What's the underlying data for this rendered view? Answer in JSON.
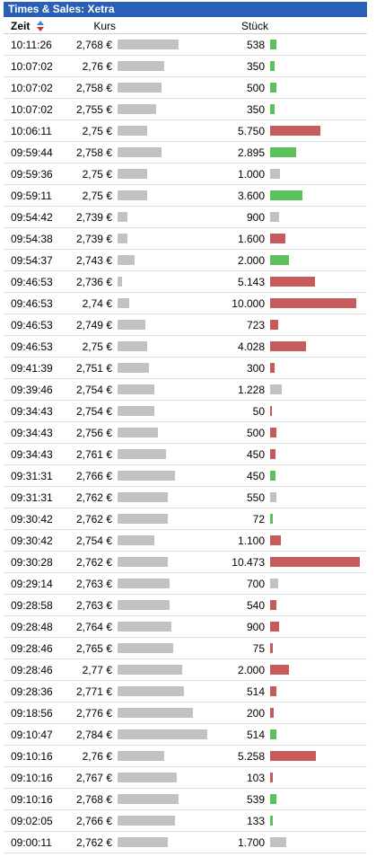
{
  "widget": {
    "title": "Times & Sales: Xetra",
    "columns": {
      "zeit": "Zeit",
      "kurs": "Kurs",
      "stueck": "Stück"
    }
  },
  "colors": {
    "title_bg": "#2a5fb8",
    "kurs_bar": "#c2c2c2",
    "neutral": "#c2c2c2",
    "up": "#5cc05c",
    "down": "#c75a5a"
  },
  "scale": {
    "kurs_min": 2.736,
    "kurs_max": 2.784,
    "stueck_max": 10473
  },
  "trades": [
    {
      "time": "10:11:26",
      "price": "2,768 €",
      "price_value": 2.768,
      "qty": "538",
      "qty_value": 538,
      "dir": "up"
    },
    {
      "time": "10:07:02",
      "price": "2,76 €",
      "price_value": 2.76,
      "qty": "350",
      "qty_value": 350,
      "dir": "up"
    },
    {
      "time": "10:07:02",
      "price": "2,758 €",
      "price_value": 2.758,
      "qty": "500",
      "qty_value": 500,
      "dir": "up"
    },
    {
      "time": "10:07:02",
      "price": "2,755 €",
      "price_value": 2.755,
      "qty": "350",
      "qty_value": 350,
      "dir": "up"
    },
    {
      "time": "10:06:11",
      "price": "2,75 €",
      "price_value": 2.75,
      "qty": "5.750",
      "qty_value": 5750,
      "dir": "down"
    },
    {
      "time": "09:59:44",
      "price": "2,758 €",
      "price_value": 2.758,
      "qty": "2.895",
      "qty_value": 2895,
      "dir": "up"
    },
    {
      "time": "09:59:36",
      "price": "2,75 €",
      "price_value": 2.75,
      "qty": "1.000",
      "qty_value": 1000,
      "dir": "neutral"
    },
    {
      "time": "09:59:11",
      "price": "2,75 €",
      "price_value": 2.75,
      "qty": "3.600",
      "qty_value": 3600,
      "dir": "up"
    },
    {
      "time": "09:54:42",
      "price": "2,739 €",
      "price_value": 2.739,
      "qty": "900",
      "qty_value": 900,
      "dir": "neutral"
    },
    {
      "time": "09:54:38",
      "price": "2,739 €",
      "price_value": 2.739,
      "qty": "1.600",
      "qty_value": 1600,
      "dir": "down"
    },
    {
      "time": "09:54:37",
      "price": "2,743 €",
      "price_value": 2.743,
      "qty": "2.000",
      "qty_value": 2000,
      "dir": "up"
    },
    {
      "time": "09:46:53",
      "price": "2,736 €",
      "price_value": 2.736,
      "qty": "5.143",
      "qty_value": 5143,
      "dir": "down"
    },
    {
      "time": "09:46:53",
      "price": "2,74 €",
      "price_value": 2.74,
      "qty": "10.000",
      "qty_value": 10000,
      "dir": "down"
    },
    {
      "time": "09:46:53",
      "price": "2,749 €",
      "price_value": 2.749,
      "qty": "723",
      "qty_value": 723,
      "dir": "down"
    },
    {
      "time": "09:46:53",
      "price": "2,75 €",
      "price_value": 2.75,
      "qty": "4.028",
      "qty_value": 4028,
      "dir": "down"
    },
    {
      "time": "09:41:39",
      "price": "2,751 €",
      "price_value": 2.751,
      "qty": "300",
      "qty_value": 300,
      "dir": "down"
    },
    {
      "time": "09:39:46",
      "price": "2,754 €",
      "price_value": 2.754,
      "qty": "1.228",
      "qty_value": 1228,
      "dir": "neutral"
    },
    {
      "time": "09:34:43",
      "price": "2,754 €",
      "price_value": 2.754,
      "qty": "50",
      "qty_value": 50,
      "dir": "down"
    },
    {
      "time": "09:34:43",
      "price": "2,756 €",
      "price_value": 2.756,
      "qty": "500",
      "qty_value": 500,
      "dir": "down"
    },
    {
      "time": "09:34:43",
      "price": "2,761 €",
      "price_value": 2.761,
      "qty": "450",
      "qty_value": 450,
      "dir": "down"
    },
    {
      "time": "09:31:31",
      "price": "2,766 €",
      "price_value": 2.766,
      "qty": "450",
      "qty_value": 450,
      "dir": "up"
    },
    {
      "time": "09:31:31",
      "price": "2,762 €",
      "price_value": 2.762,
      "qty": "550",
      "qty_value": 550,
      "dir": "neutral"
    },
    {
      "time": "09:30:42",
      "price": "2,762 €",
      "price_value": 2.762,
      "qty": "72",
      "qty_value": 72,
      "dir": "up"
    },
    {
      "time": "09:30:42",
      "price": "2,754 €",
      "price_value": 2.754,
      "qty": "1.100",
      "qty_value": 1100,
      "dir": "down"
    },
    {
      "time": "09:30:28",
      "price": "2,762 €",
      "price_value": 2.762,
      "qty": "10.473",
      "qty_value": 10473,
      "dir": "down"
    },
    {
      "time": "09:29:14",
      "price": "2,763 €",
      "price_value": 2.763,
      "qty": "700",
      "qty_value": 700,
      "dir": "neutral"
    },
    {
      "time": "09:28:58",
      "price": "2,763 €",
      "price_value": 2.763,
      "qty": "540",
      "qty_value": 540,
      "dir": "down"
    },
    {
      "time": "09:28:48",
      "price": "2,764 €",
      "price_value": 2.764,
      "qty": "900",
      "qty_value": 900,
      "dir": "down"
    },
    {
      "time": "09:28:46",
      "price": "2,765 €",
      "price_value": 2.765,
      "qty": "75",
      "qty_value": 75,
      "dir": "down"
    },
    {
      "time": "09:28:46",
      "price": "2,77 €",
      "price_value": 2.77,
      "qty": "2.000",
      "qty_value": 2000,
      "dir": "down"
    },
    {
      "time": "09:28:36",
      "price": "2,771 €",
      "price_value": 2.771,
      "qty": "514",
      "qty_value": 514,
      "dir": "down"
    },
    {
      "time": "09:18:56",
      "price": "2,776 €",
      "price_value": 2.776,
      "qty": "200",
      "qty_value": 200,
      "dir": "down"
    },
    {
      "time": "09:10:47",
      "price": "2,784 €",
      "price_value": 2.784,
      "qty": "514",
      "qty_value": 514,
      "dir": "up"
    },
    {
      "time": "09:10:16",
      "price": "2,76 €",
      "price_value": 2.76,
      "qty": "5.258",
      "qty_value": 5258,
      "dir": "down"
    },
    {
      "time": "09:10:16",
      "price": "2,767 €",
      "price_value": 2.767,
      "qty": "103",
      "qty_value": 103,
      "dir": "down"
    },
    {
      "time": "09:10:16",
      "price": "2,768 €",
      "price_value": 2.768,
      "qty": "539",
      "qty_value": 539,
      "dir": "up"
    },
    {
      "time": "09:02:05",
      "price": "2,766 €",
      "price_value": 2.766,
      "qty": "133",
      "qty_value": 133,
      "dir": "up"
    },
    {
      "time": "09:00:11",
      "price": "2,762 €",
      "price_value": 2.762,
      "qty": "1.700",
      "qty_value": 1700,
      "dir": "neutral"
    }
  ]
}
